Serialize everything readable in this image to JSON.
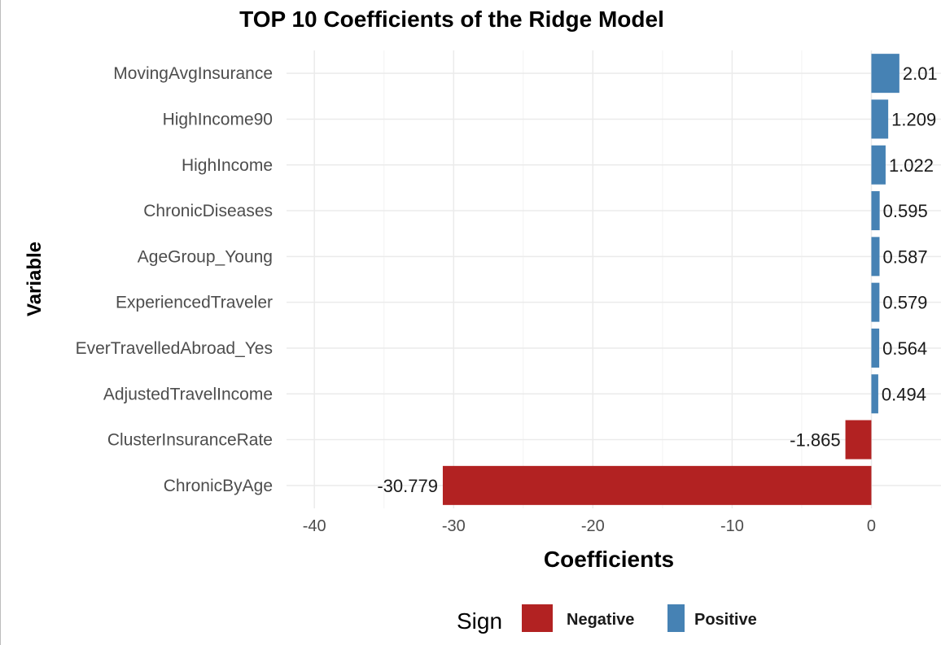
{
  "chart_data": {
    "type": "bar",
    "orientation": "horizontal",
    "title": "TOP 10 Coefficients of the Ridge Model",
    "xlabel": "Coefficients",
    "ylabel": "Variable",
    "xlim": [
      -42,
      5
    ],
    "xticks": [
      "-40",
      "-30",
      "-20",
      "-10",
      "0"
    ],
    "grid": true,
    "categories": [
      "MovingAvgInsurance",
      "HighIncome90",
      "HighIncome",
      "ChronicDiseases",
      "AgeGroup_Young",
      "ExperiencedTraveler",
      "EverTravelledAbroad_Yes",
      "AdjustedTravelIncome",
      "ClusterInsuranceRate",
      "ChronicByAge"
    ],
    "values": [
      2.01,
      1.209,
      1.022,
      0.595,
      0.587,
      0.579,
      0.564,
      0.494,
      -1.865,
      -30.779
    ],
    "data_labels": [
      "2.01",
      "1.209",
      "1.022",
      "0.595",
      "0.587",
      "0.579",
      "0.564",
      "0.494",
      "-1.865",
      "-30.779"
    ],
    "sign": [
      "Positive",
      "Positive",
      "Positive",
      "Positive",
      "Positive",
      "Positive",
      "Positive",
      "Positive",
      "Negative",
      "Negative"
    ],
    "legend": {
      "title": "Sign",
      "position": "bottom",
      "items": [
        {
          "label": "Negative",
          "color": "#b22222"
        },
        {
          "label": "Positive",
          "color": "#4682b4"
        }
      ]
    }
  }
}
